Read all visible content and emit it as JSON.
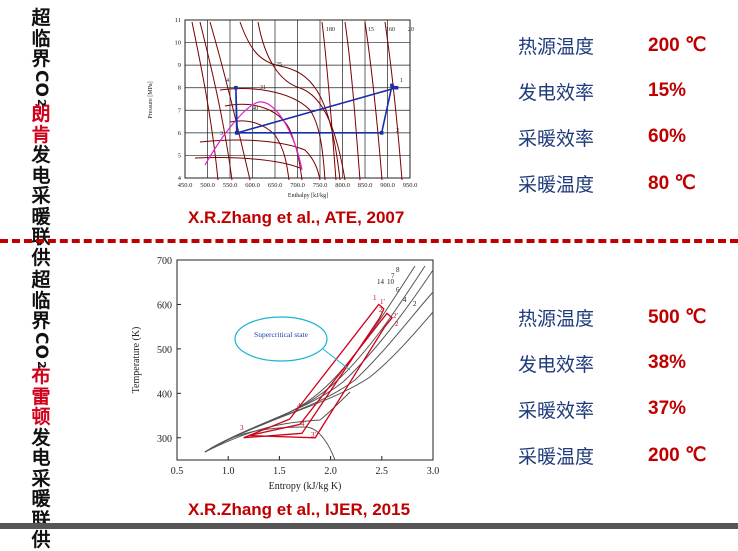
{
  "top": {
    "title_parts": [
      "超",
      "临",
      "界",
      "CO",
      "2",
      "朗",
      "肯",
      "发",
      "电",
      "采",
      "暖",
      "联",
      "供"
    ],
    "citation": "X.R.Zhang et al., ATE, 2007",
    "stats": [
      {
        "label": "热源温度",
        "value": "200 ℃"
      },
      {
        "label": "发电效率",
        "value": "15%"
      },
      {
        "label": "采暖效率",
        "value": "60%"
      },
      {
        "label": "采暖温度",
        "value": "80 ℃"
      }
    ]
  },
  "bottom": {
    "title_parts": [
      "超",
      "临",
      "界",
      "CO",
      "2",
      "布",
      "雷",
      "顿",
      "发",
      "电",
      "采",
      "暖",
      "联",
      "供"
    ],
    "citation": "X.R.Zhang et al., IJER, 2015",
    "stats": [
      {
        "label": "热源温度",
        "value": "500 ℃"
      },
      {
        "label": "发电效率",
        "value": "38%"
      },
      {
        "label": "采暖效率",
        "value": "37%"
      },
      {
        "label": "采暖温度",
        "value": "200 ℃"
      }
    ]
  },
  "chart_data": [
    {
      "type": "line",
      "title": "",
      "xlabel": "Enthalpy [kJ/kg]",
      "ylabel": "Pressure [MPa]",
      "xlim": [
        450,
        950
      ],
      "ylim": [
        4,
        11
      ],
      "xticks": [
        "450.0",
        "500.0",
        "550.0",
        "600.0",
        "650.0",
        "700.0",
        "750.0",
        "800.0",
        "850.0",
        "900.0",
        "950.0"
      ],
      "yticks": [
        "4",
        "5",
        "6",
        "7",
        "8",
        "9",
        "10",
        "11"
      ],
      "isotherm_labels": [
        "180",
        "15",
        "160",
        "20",
        "25",
        "31",
        "40"
      ],
      "point_labels": [
        "4",
        "3",
        "2",
        "1"
      ],
      "grid": true,
      "series": [
        {
          "color": "#1a2ea8",
          "x": [
            563,
            566,
            920,
            910,
            887,
            565,
            563
          ],
          "y": [
            8.0,
            6.0,
            8.0,
            8.1,
            6.0,
            6.0,
            8.0
          ]
        }
      ]
    },
    {
      "type": "line",
      "title": "",
      "xlabel": "Entropy (kJ/kg K)",
      "ylabel": "Temperature (K)",
      "xlim": [
        0.5,
        3.0
      ],
      "ylim": [
        250,
        700
      ],
      "xticks": [
        "0.5",
        "1.0",
        "1.5",
        "2.0",
        "2.5",
        "3.0"
      ],
      "yticks": [
        "300",
        "400",
        "500",
        "600",
        "700"
      ],
      "annotation": "Supercritical state",
      "curve_labels": [
        "14",
        "10",
        "7",
        "8",
        "6",
        "4",
        "2"
      ],
      "point_labels": [
        "1",
        "2",
        "3",
        "4",
        "2'",
        "3'",
        "4'",
        "1'",
        "2"
      ],
      "grid": false,
      "series": [
        {
          "color": "#d0021b",
          "x": [
            1.15,
            1.6,
            2.47,
            2.52,
            2.48,
            1.72,
            1.15
          ],
          "y": [
            300,
            342,
            600,
            590,
            570,
            310,
            300
          ]
        },
        {
          "color": "#d0021b",
          "x": [
            1.2,
            1.7,
            2.55,
            2.6,
            2.53,
            1.85,
            1.2
          ],
          "y": [
            305,
            330,
            580,
            570,
            550,
            300,
            305
          ]
        }
      ]
    }
  ]
}
